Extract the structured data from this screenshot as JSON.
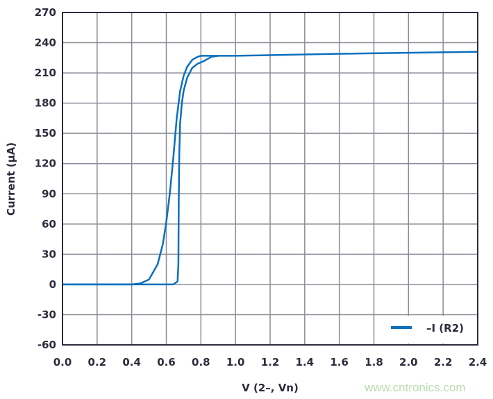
{
  "chart_data": {
    "type": "line",
    "xlabel": "V (2–, Vn)",
    "ylabel": "Current (µA)",
    "xlim": [
      0,
      2.4
    ],
    "ylim": [
      -60,
      270
    ],
    "xticks": [
      "0.0",
      "0.2",
      "0.4",
      "0.6",
      "0.8",
      "1.0",
      "1.2",
      "1.4",
      "1.6",
      "1.8",
      "2.0",
      "2.2",
      "2.4"
    ],
    "yticks": [
      "270",
      "240",
      "210",
      "180",
      "150",
      "120",
      "90",
      "60",
      "30",
      "0",
      "-30",
      "-60"
    ],
    "grid": true,
    "legend_position": "bottom-right",
    "series": [
      {
        "name": "–I (R2)",
        "color": "#0a6fbd",
        "x": [
          0,
          0.4,
          0.45,
          0.5,
          0.55,
          0.58,
          0.6,
          0.62,
          0.64,
          0.66,
          0.68,
          0.7,
          0.72,
          0.75,
          0.78,
          0.8,
          0.85,
          1.0,
          1.6,
          2.4
        ],
        "y": [
          0,
          0,
          1,
          5,
          20,
          40,
          62,
          90,
          125,
          165,
          192,
          207,
          216,
          223,
          226,
          227,
          227,
          227,
          229,
          231
        ]
      },
      {
        "name": "",
        "color": "#0a6fbd",
        "x": [
          0,
          0.64,
          0.665,
          0.67,
          0.672,
          0.675,
          0.68,
          0.69,
          0.7,
          0.72,
          0.75,
          0.78,
          0.82,
          0.86,
          0.9
        ],
        "y": [
          0,
          0,
          3,
          20,
          80,
          130,
          160,
          180,
          192,
          205,
          215,
          219,
          222,
          226,
          227
        ]
      }
    ]
  },
  "watermark": "www.cntronics.com"
}
